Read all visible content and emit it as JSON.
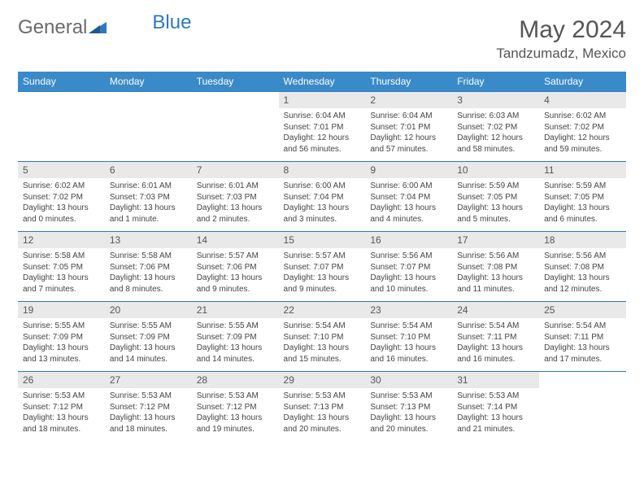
{
  "logo": {
    "part1": "General",
    "part2": "Blue"
  },
  "title": "May 2024",
  "location": "Tandzumadz, Mexico",
  "colors": {
    "header_bg": "#3a8ac9",
    "header_text": "#ffffff",
    "daynum_bg": "#e9e9e9",
    "border": "#2b7abf",
    "body_text": "#444",
    "title_text": "#555"
  },
  "day_headers": [
    "Sunday",
    "Monday",
    "Tuesday",
    "Wednesday",
    "Thursday",
    "Friday",
    "Saturday"
  ],
  "weeks": [
    {
      "nums": [
        "",
        "",
        "",
        "1",
        "2",
        "3",
        "4"
      ],
      "cells": [
        null,
        null,
        null,
        {
          "sunrise": "Sunrise: 6:04 AM",
          "sunset": "Sunset: 7:01 PM",
          "day1": "Daylight: 12 hours",
          "day2": "and 56 minutes."
        },
        {
          "sunrise": "Sunrise: 6:04 AM",
          "sunset": "Sunset: 7:01 PM",
          "day1": "Daylight: 12 hours",
          "day2": "and 57 minutes."
        },
        {
          "sunrise": "Sunrise: 6:03 AM",
          "sunset": "Sunset: 7:02 PM",
          "day1": "Daylight: 12 hours",
          "day2": "and 58 minutes."
        },
        {
          "sunrise": "Sunrise: 6:02 AM",
          "sunset": "Sunset: 7:02 PM",
          "day1": "Daylight: 12 hours",
          "day2": "and 59 minutes."
        }
      ]
    },
    {
      "nums": [
        "5",
        "6",
        "7",
        "8",
        "9",
        "10",
        "11"
      ],
      "cells": [
        {
          "sunrise": "Sunrise: 6:02 AM",
          "sunset": "Sunset: 7:02 PM",
          "day1": "Daylight: 13 hours",
          "day2": "and 0 minutes."
        },
        {
          "sunrise": "Sunrise: 6:01 AM",
          "sunset": "Sunset: 7:03 PM",
          "day1": "Daylight: 13 hours",
          "day2": "and 1 minute."
        },
        {
          "sunrise": "Sunrise: 6:01 AM",
          "sunset": "Sunset: 7:03 PM",
          "day1": "Daylight: 13 hours",
          "day2": "and 2 minutes."
        },
        {
          "sunrise": "Sunrise: 6:00 AM",
          "sunset": "Sunset: 7:04 PM",
          "day1": "Daylight: 13 hours",
          "day2": "and 3 minutes."
        },
        {
          "sunrise": "Sunrise: 6:00 AM",
          "sunset": "Sunset: 7:04 PM",
          "day1": "Daylight: 13 hours",
          "day2": "and 4 minutes."
        },
        {
          "sunrise": "Sunrise: 5:59 AM",
          "sunset": "Sunset: 7:05 PM",
          "day1": "Daylight: 13 hours",
          "day2": "and 5 minutes."
        },
        {
          "sunrise": "Sunrise: 5:59 AM",
          "sunset": "Sunset: 7:05 PM",
          "day1": "Daylight: 13 hours",
          "day2": "and 6 minutes."
        }
      ]
    },
    {
      "nums": [
        "12",
        "13",
        "14",
        "15",
        "16",
        "17",
        "18"
      ],
      "cells": [
        {
          "sunrise": "Sunrise: 5:58 AM",
          "sunset": "Sunset: 7:05 PM",
          "day1": "Daylight: 13 hours",
          "day2": "and 7 minutes."
        },
        {
          "sunrise": "Sunrise: 5:58 AM",
          "sunset": "Sunset: 7:06 PM",
          "day1": "Daylight: 13 hours",
          "day2": "and 8 minutes."
        },
        {
          "sunrise": "Sunrise: 5:57 AM",
          "sunset": "Sunset: 7:06 PM",
          "day1": "Daylight: 13 hours",
          "day2": "and 9 minutes."
        },
        {
          "sunrise": "Sunrise: 5:57 AM",
          "sunset": "Sunset: 7:07 PM",
          "day1": "Daylight: 13 hours",
          "day2": "and 9 minutes."
        },
        {
          "sunrise": "Sunrise: 5:56 AM",
          "sunset": "Sunset: 7:07 PM",
          "day1": "Daylight: 13 hours",
          "day2": "and 10 minutes."
        },
        {
          "sunrise": "Sunrise: 5:56 AM",
          "sunset": "Sunset: 7:08 PM",
          "day1": "Daylight: 13 hours",
          "day2": "and 11 minutes."
        },
        {
          "sunrise": "Sunrise: 5:56 AM",
          "sunset": "Sunset: 7:08 PM",
          "day1": "Daylight: 13 hours",
          "day2": "and 12 minutes."
        }
      ]
    },
    {
      "nums": [
        "19",
        "20",
        "21",
        "22",
        "23",
        "24",
        "25"
      ],
      "cells": [
        {
          "sunrise": "Sunrise: 5:55 AM",
          "sunset": "Sunset: 7:09 PM",
          "day1": "Daylight: 13 hours",
          "day2": "and 13 minutes."
        },
        {
          "sunrise": "Sunrise: 5:55 AM",
          "sunset": "Sunset: 7:09 PM",
          "day1": "Daylight: 13 hours",
          "day2": "and 14 minutes."
        },
        {
          "sunrise": "Sunrise: 5:55 AM",
          "sunset": "Sunset: 7:09 PM",
          "day1": "Daylight: 13 hours",
          "day2": "and 14 minutes."
        },
        {
          "sunrise": "Sunrise: 5:54 AM",
          "sunset": "Sunset: 7:10 PM",
          "day1": "Daylight: 13 hours",
          "day2": "and 15 minutes."
        },
        {
          "sunrise": "Sunrise: 5:54 AM",
          "sunset": "Sunset: 7:10 PM",
          "day1": "Daylight: 13 hours",
          "day2": "and 16 minutes."
        },
        {
          "sunrise": "Sunrise: 5:54 AM",
          "sunset": "Sunset: 7:11 PM",
          "day1": "Daylight: 13 hours",
          "day2": "and 16 minutes."
        },
        {
          "sunrise": "Sunrise: 5:54 AM",
          "sunset": "Sunset: 7:11 PM",
          "day1": "Daylight: 13 hours",
          "day2": "and 17 minutes."
        }
      ]
    },
    {
      "nums": [
        "26",
        "27",
        "28",
        "29",
        "30",
        "31",
        ""
      ],
      "cells": [
        {
          "sunrise": "Sunrise: 5:53 AM",
          "sunset": "Sunset: 7:12 PM",
          "day1": "Daylight: 13 hours",
          "day2": "and 18 minutes."
        },
        {
          "sunrise": "Sunrise: 5:53 AM",
          "sunset": "Sunset: 7:12 PM",
          "day1": "Daylight: 13 hours",
          "day2": "and 18 minutes."
        },
        {
          "sunrise": "Sunrise: 5:53 AM",
          "sunset": "Sunset: 7:12 PM",
          "day1": "Daylight: 13 hours",
          "day2": "and 19 minutes."
        },
        {
          "sunrise": "Sunrise: 5:53 AM",
          "sunset": "Sunset: 7:13 PM",
          "day1": "Daylight: 13 hours",
          "day2": "and 20 minutes."
        },
        {
          "sunrise": "Sunrise: 5:53 AM",
          "sunset": "Sunset: 7:13 PM",
          "day1": "Daylight: 13 hours",
          "day2": "and 20 minutes."
        },
        {
          "sunrise": "Sunrise: 5:53 AM",
          "sunset": "Sunset: 7:14 PM",
          "day1": "Daylight: 13 hours",
          "day2": "and 21 minutes."
        },
        null
      ]
    }
  ]
}
